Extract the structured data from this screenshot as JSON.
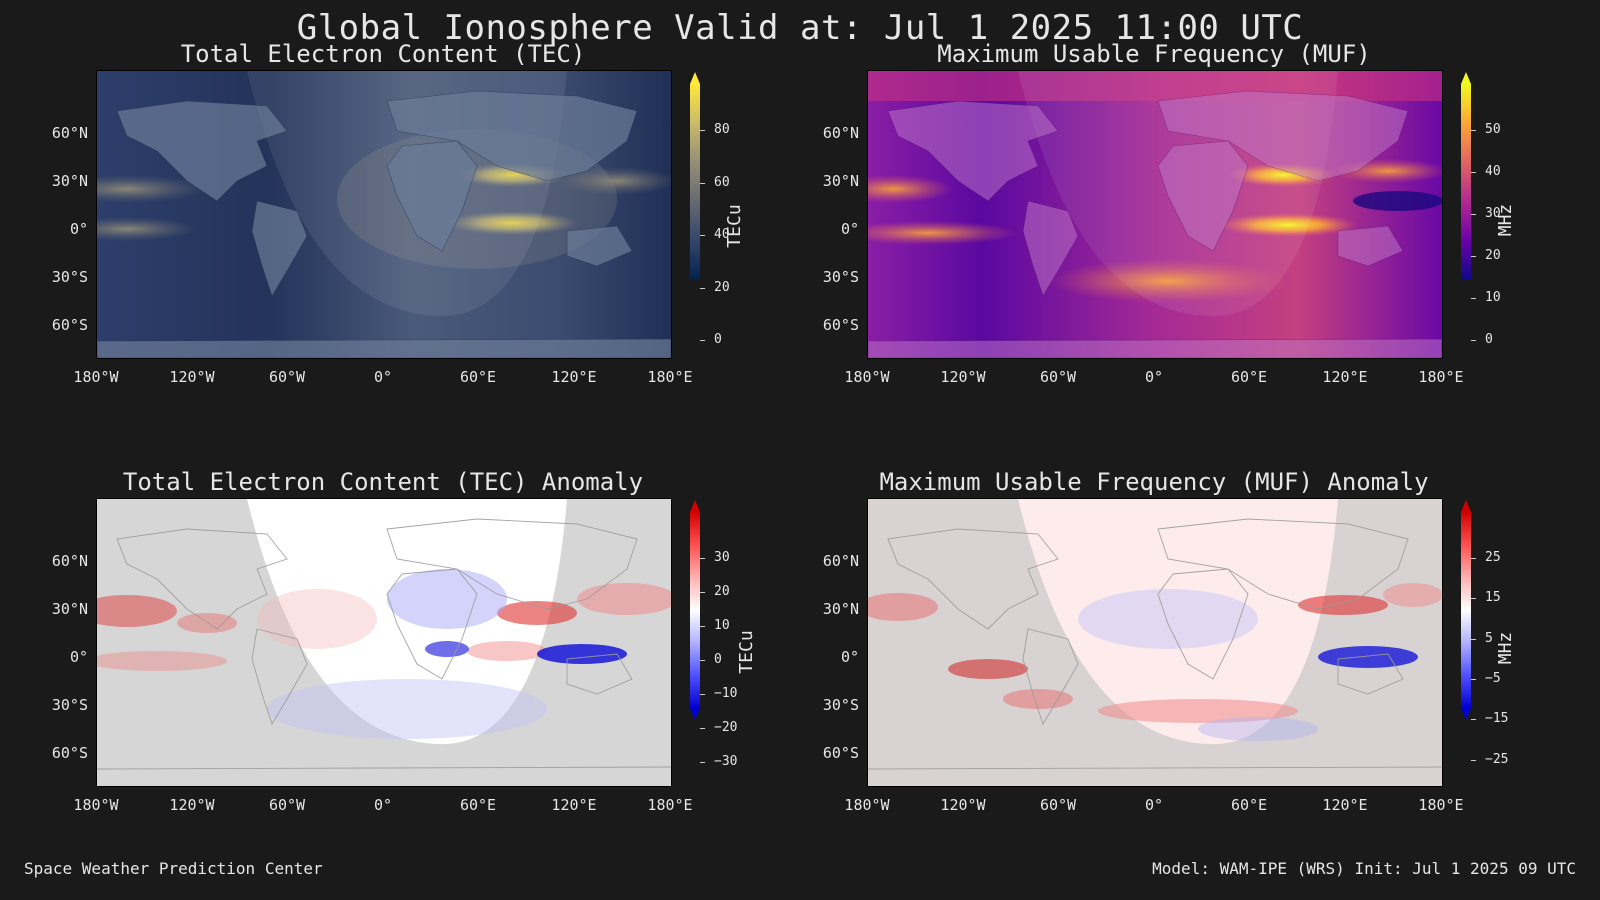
{
  "title": "Global Ionosphere Valid at: Jul 1 2025 11:00 UTC",
  "footer": {
    "left": "Space Weather Prediction Center",
    "right": "Model: WAM-IPE (WRS) Init: Jul 1 2025 09 UTC"
  },
  "axes": {
    "lat_ticks": [
      "60°N",
      "30°N",
      "0°",
      "30°S",
      "60°S"
    ],
    "lon_ticks": [
      "180°W",
      "120°W",
      "60°W",
      "0°",
      "60°E",
      "120°E",
      "180°E"
    ]
  },
  "panels": [
    {
      "title": "Total Electron Content (TEC)",
      "units": "TECu",
      "colormap": "cividis",
      "colors": [
        "#00224e",
        "#35456c",
        "#666970",
        "#958f78",
        "#cbba69",
        "#fee838"
      ],
      "colorbar_ticks": [
        "80",
        "60",
        "40",
        "20",
        "0"
      ],
      "range": [
        0,
        80
      ]
    },
    {
      "title": "Maximum Usable Frequency (MUF)",
      "units": "MHz",
      "colormap": "plasma",
      "colors": [
        "#0d0887",
        "#6a00a8",
        "#b12a90",
        "#e16462",
        "#fca636",
        "#f0f921"
      ],
      "colorbar_ticks": [
        "50",
        "40",
        "30",
        "20",
        "10",
        "0"
      ],
      "range": [
        0,
        50
      ]
    },
    {
      "title": "Total Electron Content (TEC) Anomaly",
      "units": "TECu",
      "colormap": "bwr",
      "colors": [
        "#0000ff",
        "#8080ff",
        "#ffffff",
        "#ff8080",
        "#ff0000"
      ],
      "colorbar_ticks": [
        "30",
        "20",
        "10",
        "0",
        "−10",
        "−20",
        "−30"
      ],
      "range": [
        -30,
        30
      ]
    },
    {
      "title": "Maximum Usable Frequency (MUF) Anomaly",
      "units": "MHz",
      "colormap": "bwr",
      "colors": [
        "#0000ff",
        "#8080ff",
        "#ffffff",
        "#ff8080",
        "#ff0000"
      ],
      "colorbar_ticks": [
        "25",
        "15",
        "5",
        "−5",
        "−15",
        "−25"
      ],
      "range": [
        -25,
        25
      ]
    }
  ]
}
